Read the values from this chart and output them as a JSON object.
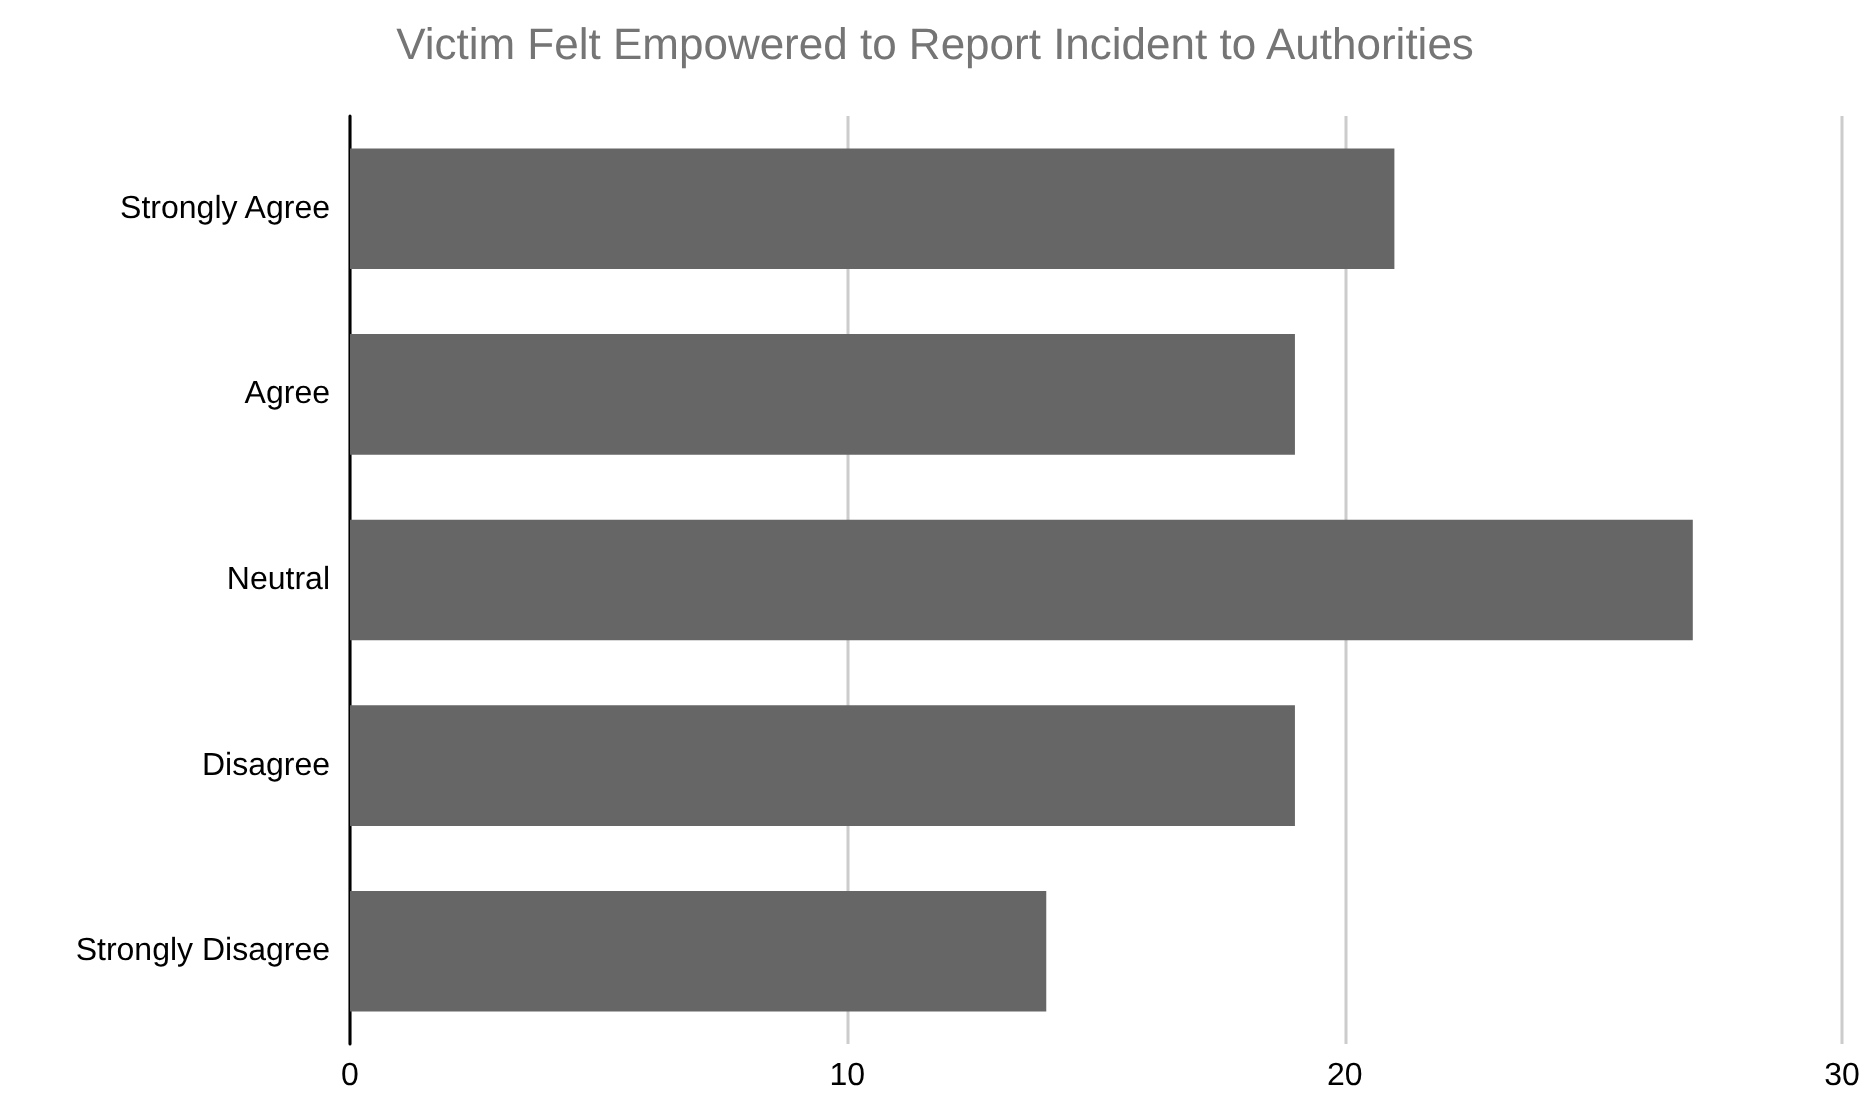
{
  "chart_data": {
    "type": "bar",
    "orientation": "horizontal",
    "title": "Victim Felt Empowered to Report Incident to Authorities",
    "categories": [
      "Strongly Agree",
      "Agree",
      "Neutral",
      "Disagree",
      "Strongly Disagree"
    ],
    "values": [
      21,
      19,
      27,
      19,
      14
    ],
    "color": "#666666",
    "xlim": [
      0,
      30
    ],
    "xticks": [
      0,
      10,
      20,
      30
    ],
    "grid": "x"
  }
}
